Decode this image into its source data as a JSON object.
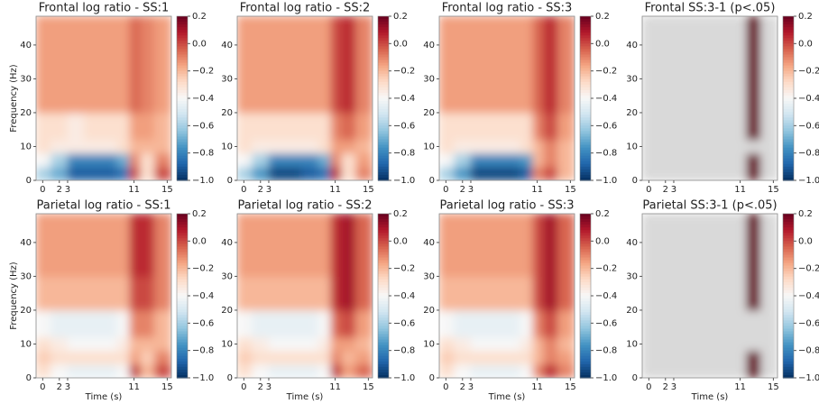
{
  "chart_data": [
    {
      "type": "heatmap",
      "title": "Frontal log ratio - SS:1",
      "ylabel": "Frequency (Hz)",
      "xbins": [
        -0.8,
        1,
        3,
        5,
        7,
        9,
        10.5,
        11.8,
        13.5,
        15.5
      ],
      "ybins": [
        0,
        4,
        8,
        12,
        20,
        30,
        48.5
      ],
      "z": [
        [
          -0.6,
          -0.7,
          -0.9,
          -0.9,
          -0.9,
          -0.85,
          0.0,
          -0.3,
          0.0
        ],
        [
          -0.4,
          -0.6,
          -0.8,
          -0.8,
          -0.8,
          -0.7,
          -0.1,
          -0.3,
          -0.1
        ],
        [
          -0.3,
          -0.35,
          -0.35,
          -0.35,
          -0.35,
          -0.3,
          -0.2,
          -0.2,
          -0.2
        ],
        [
          -0.3,
          -0.3,
          -0.35,
          -0.3,
          -0.3,
          -0.3,
          -0.15,
          -0.15,
          -0.2
        ],
        [
          -0.15,
          -0.15,
          -0.15,
          -0.15,
          -0.15,
          -0.15,
          -0.05,
          -0.1,
          -0.15
        ],
        [
          -0.15,
          -0.15,
          -0.15,
          -0.15,
          -0.15,
          -0.15,
          -0.05,
          -0.1,
          -0.15
        ]
      ],
      "xlim": [
        -0.8,
        15.5
      ],
      "ylim": [
        0,
        48.5
      ],
      "xticks": [
        0,
        2,
        3,
        11,
        15
      ],
      "yticks": [
        0,
        10,
        20,
        30,
        40
      ],
      "clim": [
        -1,
        0.2
      ],
      "cticks": [
        {
          "value": -1,
          "label": "−1.0"
        },
        {
          "value": -0.8,
          "label": "−0.8"
        },
        {
          "value": -0.6,
          "label": "−0.6"
        },
        {
          "value": -0.4,
          "label": "−0.4"
        },
        {
          "value": -0.2,
          "label": "−0.2"
        },
        {
          "value": 0,
          "label": "0.0"
        },
        0.2
      ],
      "colormap": "RdBu_r",
      "mask_color": "#d9d9d9"
    },
    {
      "type": "heatmap",
      "title": "Frontal log ratio - SS:2",
      "xbins": [
        -0.8,
        1,
        3,
        5,
        7,
        9,
        10.5,
        11.8,
        13.5,
        15.5
      ],
      "ybins": [
        0,
        4,
        8,
        12,
        20,
        30,
        48.5
      ],
      "z": [
        [
          -0.6,
          -0.75,
          -0.95,
          -0.95,
          -0.9,
          -0.85,
          0.05,
          -0.3,
          -0.1
        ],
        [
          -0.4,
          -0.6,
          -0.8,
          -0.8,
          -0.8,
          -0.7,
          -0.1,
          -0.3,
          -0.15
        ],
        [
          -0.3,
          -0.35,
          -0.35,
          -0.35,
          -0.35,
          -0.3,
          -0.15,
          -0.15,
          -0.2
        ],
        [
          -0.3,
          -0.3,
          -0.3,
          -0.3,
          -0.3,
          -0.3,
          -0.1,
          -0.05,
          -0.15
        ],
        [
          -0.15,
          -0.15,
          -0.15,
          -0.15,
          -0.15,
          -0.15,
          0.0,
          0.05,
          -0.1
        ],
        [
          -0.15,
          -0.15,
          -0.15,
          -0.15,
          -0.15,
          -0.15,
          0.0,
          0.05,
          -0.1
        ]
      ],
      "xlim": [
        -0.8,
        15.5
      ],
      "ylim": [
        0,
        48.5
      ],
      "xticks": [
        0,
        2,
        3,
        11,
        15
      ],
      "yticks": [
        0,
        10,
        20,
        30,
        40
      ],
      "clim": [
        -1,
        0.2
      ],
      "cticks": [
        {
          "value": -1,
          "label": "−1.0"
        },
        {
          "value": -0.8,
          "label": "−0.8"
        },
        {
          "value": -0.6,
          "label": "−0.6"
        },
        {
          "value": -0.4,
          "label": "−0.4"
        },
        {
          "value": -0.2,
          "label": "−0.2"
        },
        {
          "value": 0,
          "label": "0.0"
        },
        0.2
      ],
      "colormap": "RdBu_r",
      "mask_color": "#d9d9d9"
    },
    {
      "type": "heatmap",
      "title": "Frontal log ratio - SS:3",
      "xbins": [
        -0.8,
        1,
        3,
        5,
        7,
        9,
        10.5,
        11.8,
        13.5,
        15.5
      ],
      "ybins": [
        0,
        4,
        8,
        12,
        20,
        30,
        48.5
      ],
      "z": [
        [
          -0.6,
          -0.75,
          -0.95,
          -0.95,
          -0.95,
          -0.9,
          -0.1,
          0.0,
          -0.2
        ],
        [
          -0.4,
          -0.6,
          -0.8,
          -0.8,
          -0.8,
          -0.75,
          -0.2,
          -0.1,
          -0.2
        ],
        [
          -0.3,
          -0.35,
          -0.35,
          -0.35,
          -0.35,
          -0.3,
          -0.2,
          -0.1,
          -0.2
        ],
        [
          -0.3,
          -0.3,
          -0.3,
          -0.3,
          -0.3,
          -0.3,
          -0.1,
          0.0,
          -0.15
        ],
        [
          -0.15,
          -0.15,
          -0.15,
          -0.15,
          -0.15,
          -0.15,
          -0.05,
          0.05,
          -0.1
        ],
        [
          -0.15,
          -0.15,
          -0.15,
          -0.15,
          -0.15,
          -0.15,
          -0.05,
          0.05,
          -0.1
        ]
      ],
      "xlim": [
        -0.8,
        15.5
      ],
      "ylim": [
        0,
        48.5
      ],
      "xticks": [
        0,
        2,
        3,
        11,
        15
      ],
      "yticks": [
        0,
        10,
        20,
        30,
        40
      ],
      "clim": [
        -1,
        0.2
      ],
      "cticks": [
        {
          "value": -1,
          "label": "−1.0"
        },
        {
          "value": -0.8,
          "label": "−0.8"
        },
        {
          "value": -0.6,
          "label": "−0.6"
        },
        {
          "value": -0.4,
          "label": "−0.4"
        },
        {
          "value": -0.2,
          "label": "−0.2"
        },
        {
          "value": 0,
          "label": "0.0"
        },
        0.2
      ],
      "colormap": "RdBu_r",
      "mask_color": "#d9d9d9"
    },
    {
      "type": "heatmap",
      "title": "Frontal SS:3-1 (p<.05)",
      "xbins": [
        -0.8,
        1,
        3,
        5,
        7,
        9,
        10.5,
        11.8,
        13.5,
        15.5
      ],
      "ybins": [
        0,
        4,
        8,
        12,
        20,
        30,
        48.5
      ],
      "z": [
        [
          null,
          null,
          null,
          null,
          null,
          null,
          null,
          0.2,
          null
        ],
        [
          null,
          null,
          null,
          null,
          null,
          null,
          null,
          0.2,
          null
        ],
        [
          null,
          null,
          null,
          null,
          null,
          null,
          null,
          null,
          null
        ],
        [
          null,
          null,
          null,
          null,
          null,
          null,
          null,
          0.2,
          null
        ],
        [
          null,
          null,
          null,
          null,
          null,
          null,
          null,
          0.2,
          null
        ],
        [
          null,
          null,
          null,
          null,
          null,
          null,
          null,
          0.2,
          null
        ]
      ],
      "xlim": [
        -0.8,
        15.5
      ],
      "ylim": [
        0,
        48.5
      ],
      "xticks": [
        0,
        2,
        3,
        11,
        15
      ],
      "yticks": [
        0,
        10,
        20,
        30,
        40
      ],
      "clim": [
        -1,
        0.2
      ],
      "cticks": [
        {
          "value": -1,
          "label": "−1.0"
        },
        {
          "value": -0.8,
          "label": "−0.8"
        },
        {
          "value": -0.6,
          "label": "−0.6"
        },
        {
          "value": -0.4,
          "label": "−0.4"
        },
        {
          "value": -0.2,
          "label": "−0.2"
        },
        {
          "value": 0,
          "label": "0.0"
        },
        0.2
      ],
      "colormap": "RdBu_r",
      "mask_color": "#d9d9d9"
    },
    {
      "type": "heatmap",
      "title": "Parietal log ratio - SS:1",
      "ylabel": "Frequency (Hz)",
      "xlabel": "Time (s)",
      "xbins": [
        -0.8,
        1,
        3,
        5,
        7,
        9,
        10.5,
        11.8,
        13.5,
        15.5
      ],
      "ybins": [
        0,
        4,
        8,
        12,
        20,
        30,
        48.5
      ],
      "z": [
        [
          -0.3,
          -0.4,
          -0.45,
          -0.45,
          -0.45,
          -0.4,
          0.05,
          -0.2,
          0.0
        ],
        [
          -0.25,
          -0.3,
          -0.3,
          -0.3,
          -0.3,
          -0.3,
          -0.15,
          -0.25,
          -0.1
        ],
        [
          -0.3,
          -0.35,
          -0.4,
          -0.4,
          -0.4,
          -0.35,
          -0.2,
          -0.2,
          -0.2
        ],
        [
          -0.4,
          -0.45,
          -0.45,
          -0.45,
          -0.45,
          -0.4,
          -0.1,
          -0.1,
          -0.2
        ],
        [
          -0.2,
          -0.2,
          -0.2,
          -0.2,
          -0.2,
          -0.2,
          0.0,
          0.0,
          -0.1
        ],
        [
          -0.15,
          -0.15,
          -0.15,
          -0.15,
          -0.15,
          -0.15,
          0.05,
          0.05,
          -0.1
        ]
      ],
      "xlim": [
        -0.8,
        15.5
      ],
      "ylim": [
        0,
        48.5
      ],
      "xticks": [
        0,
        2,
        3,
        11,
        15
      ],
      "yticks": [
        0,
        10,
        20,
        30,
        40
      ],
      "clim": [
        -1,
        0.2
      ],
      "cticks": [
        {
          "value": -1,
          "label": "−1.0"
        },
        {
          "value": -0.8,
          "label": "−0.8"
        },
        {
          "value": -0.6,
          "label": "−0.6"
        },
        {
          "value": -0.4,
          "label": "−0.4"
        },
        {
          "value": -0.2,
          "label": "−0.2"
        },
        {
          "value": 0,
          "label": "0.0"
        },
        0.2
      ],
      "colormap": "RdBu_r",
      "mask_color": "#d9d9d9"
    },
    {
      "type": "heatmap",
      "title": "Parietal log ratio - SS:2",
      "xlabel": "Time (s)",
      "xbins": [
        -0.8,
        1,
        3,
        5,
        7,
        9,
        10.5,
        11.8,
        13.5,
        15.5
      ],
      "ybins": [
        0,
        4,
        8,
        12,
        20,
        30,
        48.5
      ],
      "z": [
        [
          -0.3,
          -0.4,
          -0.45,
          -0.45,
          -0.45,
          -0.4,
          0.05,
          -0.15,
          -0.05
        ],
        [
          -0.25,
          -0.3,
          -0.3,
          -0.3,
          -0.3,
          -0.3,
          -0.1,
          -0.2,
          -0.15
        ],
        [
          -0.3,
          -0.35,
          -0.4,
          -0.4,
          -0.4,
          -0.35,
          -0.15,
          -0.15,
          -0.2
        ],
        [
          -0.4,
          -0.45,
          -0.45,
          -0.45,
          -0.45,
          -0.4,
          -0.05,
          0.0,
          -0.15
        ],
        [
          -0.2,
          -0.2,
          -0.2,
          -0.2,
          -0.2,
          -0.2,
          0.05,
          0.1,
          -0.05
        ],
        [
          -0.15,
          -0.15,
          -0.15,
          -0.15,
          -0.15,
          -0.15,
          0.05,
          0.1,
          -0.05
        ]
      ],
      "xlim": [
        -0.8,
        15.5
      ],
      "ylim": [
        0,
        48.5
      ],
      "xticks": [
        0,
        2,
        3,
        11,
        15
      ],
      "yticks": [
        0,
        10,
        20,
        30,
        40
      ],
      "clim": [
        -1,
        0.2
      ],
      "cticks": [
        {
          "value": -1,
          "label": "−1.0"
        },
        {
          "value": -0.8,
          "label": "−0.8"
        },
        {
          "value": -0.6,
          "label": "−0.6"
        },
        {
          "value": -0.4,
          "label": "−0.4"
        },
        {
          "value": -0.2,
          "label": "−0.2"
        },
        {
          "value": 0,
          "label": "0.0"
        },
        0.2
      ],
      "colormap": "RdBu_r",
      "mask_color": "#d9d9d9"
    },
    {
      "type": "heatmap",
      "title": "Parietal log ratio - SS:3",
      "xlabel": "Time (s)",
      "xbins": [
        -0.8,
        1,
        3,
        5,
        7,
        9,
        10.5,
        11.8,
        13.5,
        15.5
      ],
      "ybins": [
        0,
        4,
        8,
        12,
        20,
        30,
        48.5
      ],
      "z": [
        [
          -0.3,
          -0.4,
          -0.45,
          -0.45,
          -0.45,
          -0.4,
          -0.1,
          0.05,
          -0.1
        ],
        [
          -0.25,
          -0.3,
          -0.3,
          -0.3,
          -0.3,
          -0.3,
          -0.2,
          -0.1,
          -0.15
        ],
        [
          -0.3,
          -0.35,
          -0.4,
          -0.4,
          -0.4,
          -0.35,
          -0.2,
          -0.1,
          -0.2
        ],
        [
          -0.4,
          -0.45,
          -0.45,
          -0.45,
          -0.45,
          -0.4,
          -0.1,
          0.0,
          -0.15
        ],
        [
          -0.2,
          -0.2,
          -0.2,
          -0.2,
          -0.2,
          -0.2,
          0.0,
          0.1,
          -0.05
        ],
        [
          -0.15,
          -0.15,
          -0.15,
          -0.15,
          -0.15,
          -0.15,
          0.0,
          0.1,
          -0.05
        ]
      ],
      "xlim": [
        -0.8,
        15.5
      ],
      "ylim": [
        0,
        48.5
      ],
      "xticks": [
        0,
        2,
        3,
        11,
        15
      ],
      "yticks": [
        0,
        10,
        20,
        30,
        40
      ],
      "clim": [
        -1,
        0.2
      ],
      "cticks": [
        {
          "value": -1,
          "label": "−1.0"
        },
        {
          "value": -0.8,
          "label": "−0.8"
        },
        {
          "value": -0.6,
          "label": "−0.6"
        },
        {
          "value": -0.4,
          "label": "−0.4"
        },
        {
          "value": -0.2,
          "label": "−0.2"
        },
        {
          "value": 0,
          "label": "0.0"
        },
        0.2
      ],
      "colormap": "RdBu_r",
      "mask_color": "#d9d9d9"
    },
    {
      "type": "heatmap",
      "title": "Parietal SS:3-1 (p<.05)",
      "xlabel": "Time (s)",
      "xbins": [
        -0.8,
        1,
        3,
        5,
        7,
        9,
        10.5,
        11.8,
        13.5,
        15.5
      ],
      "ybins": [
        0,
        4,
        8,
        12,
        20,
        30,
        48.5
      ],
      "z": [
        [
          null,
          null,
          null,
          null,
          null,
          null,
          null,
          0.2,
          null
        ],
        [
          null,
          null,
          null,
          null,
          null,
          null,
          null,
          0.2,
          null
        ],
        [
          null,
          null,
          null,
          null,
          null,
          null,
          null,
          null,
          null
        ],
        [
          null,
          null,
          null,
          null,
          null,
          null,
          null,
          null,
          null
        ],
        [
          null,
          null,
          null,
          null,
          null,
          null,
          null,
          0.2,
          null
        ],
        [
          null,
          null,
          null,
          null,
          null,
          null,
          null,
          0.2,
          null
        ]
      ],
      "xlim": [
        -0.8,
        15.5
      ],
      "ylim": [
        0,
        48.5
      ],
      "xticks": [
        0,
        2,
        3,
        11,
        15
      ],
      "yticks": [
        0,
        10,
        20,
        30,
        40
      ],
      "clim": [
        -1,
        0.2
      ],
      "cticks": [
        {
          "value": -1,
          "label": "−1.0"
        },
        {
          "value": -0.8,
          "label": "−0.8"
        },
        {
          "value": -0.6,
          "label": "−0.6"
        },
        {
          "value": -0.4,
          "label": "−0.4"
        },
        {
          "value": -0.2,
          "label": "−0.2"
        },
        {
          "value": 0,
          "label": "0.0"
        },
        0.2
      ],
      "colormap": "RdBu_r",
      "mask_color": "#d9d9d9"
    }
  ]
}
